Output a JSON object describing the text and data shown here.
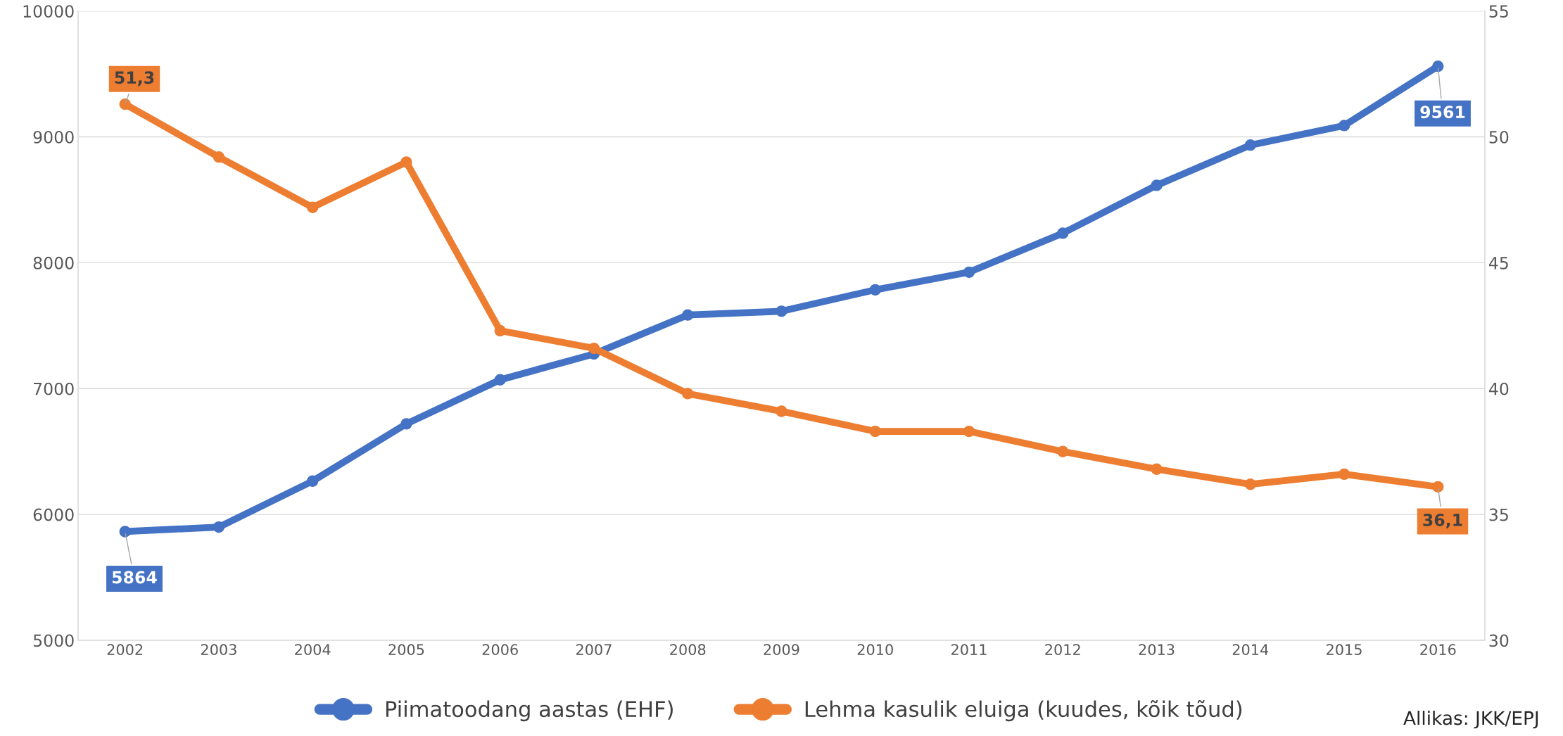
{
  "chart_data": {
    "type": "line",
    "categories": [
      "2002",
      "2003",
      "2004",
      "2005",
      "2006",
      "2007",
      "2008",
      "2009",
      "2010",
      "2011",
      "2012",
      "2013",
      "2014",
      "2015",
      "2016"
    ],
    "series": [
      {
        "name": "Piimatoodang aastas (EHF)",
        "color": "#4472c4",
        "values": [
          5864,
          5900,
          6265,
          6720,
          7070,
          7275,
          7585,
          7615,
          7785,
          7925,
          8235,
          8615,
          8935,
          9090,
          9561
        ],
        "value_labels": [
          "5864",
          null,
          null,
          null,
          null,
          null,
          null,
          null,
          null,
          null,
          null,
          null,
          null,
          null,
          "9561"
        ]
      },
      {
        "name": "Lehma kasulik eluiga (kuudes, kõik tõud)",
        "color": "#ed7d31",
        "axis": "y2",
        "values": [
          51.3,
          49.2,
          47.2,
          49.0,
          42.3,
          41.6,
          39.8,
          39.1,
          38.3,
          38.3,
          37.5,
          36.8,
          36.2,
          36.6,
          36.1
        ],
        "value_labels": [
          "51,3",
          null,
          null,
          null,
          null,
          null,
          null,
          null,
          null,
          null,
          null,
          null,
          null,
          null,
          "36,1"
        ]
      }
    ],
    "ylim": [
      5000,
      10000
    ],
    "yticks": [
      5000,
      6000,
      7000,
      8000,
      9000,
      10000
    ],
    "y2lim": [
      30,
      55
    ],
    "y2ticks": [
      30,
      35,
      40,
      45,
      50,
      55
    ],
    "grid": "y",
    "legend": "bottom",
    "marker": "circle",
    "line_style": "solid",
    "annotations": [
      "Allikas: JKK/EPJ"
    ]
  }
}
